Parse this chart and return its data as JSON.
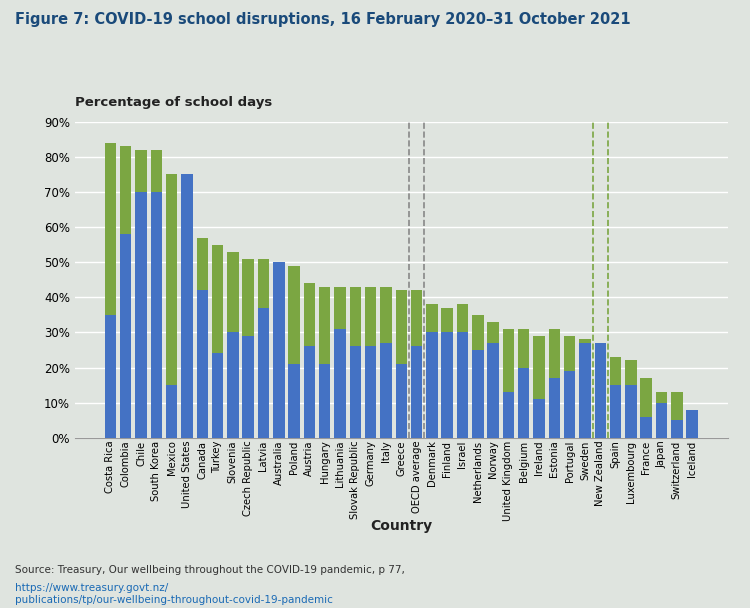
{
  "title": "Figure 7: COVID-19 school disruptions, 16 February 2020–31 October 2021",
  "ylabel": "Percentage of school days",
  "xlabel": "Country",
  "background_color": "#dfe4df",
  "plot_background": "#dfe4df",
  "bar_color_partial": "#4472c4",
  "bar_color_closed": "#7ba642",
  "countries": [
    "Costa Rica",
    "Colombia",
    "Chile",
    "South Korea",
    "Mexico",
    "United States",
    "Canada",
    "Turkey",
    "Slovenia",
    "Czech Republic",
    "Latvia",
    "Australia",
    "Poland",
    "Austria",
    "Hungary",
    "Lithuania",
    "Slovak Republic",
    "Germany",
    "Italy",
    "Greece",
    "OECD average",
    "Denmark",
    "Finland",
    "Israel",
    "Netherlands",
    "Norway",
    "United Kingdom",
    "Belgium",
    "Ireland",
    "Estonia",
    "Portugal",
    "Sweden",
    "New Zealand",
    "Spain",
    "Luxembourg",
    "France",
    "Japan",
    "Switzerland",
    "Iceland"
  ],
  "partially_closed": [
    35,
    58,
    70,
    70,
    15,
    75,
    42,
    24,
    30,
    29,
    37,
    50,
    21,
    26,
    21,
    31,
    26,
    26,
    27,
    21,
    26,
    30,
    30,
    30,
    25,
    27,
    13,
    20,
    11,
    17,
    19,
    27,
    27,
    15,
    15,
    6,
    10,
    5,
    8
  ],
  "closed_covid": [
    49,
    25,
    12,
    12,
    60,
    0,
    15,
    31,
    23,
    22,
    14,
    0,
    28,
    18,
    22,
    12,
    17,
    17,
    16,
    21,
    16,
    8,
    7,
    8,
    10,
    6,
    18,
    11,
    18,
    14,
    10,
    1,
    0,
    8,
    7,
    11,
    3,
    8,
    0
  ],
  "ylim": [
    0,
    90
  ],
  "yticks": [
    0,
    10,
    20,
    30,
    40,
    50,
    60,
    70,
    80,
    90
  ],
  "oecd_avg_index": 20,
  "nz_index": 32,
  "title_color": "#1a4a7a",
  "source_color": "#333333",
  "url_color": "#1a6ab5",
  "grid_color": "#ffffff",
  "oecd_line_color": "#888888",
  "nz_line_color": "#7ba642"
}
